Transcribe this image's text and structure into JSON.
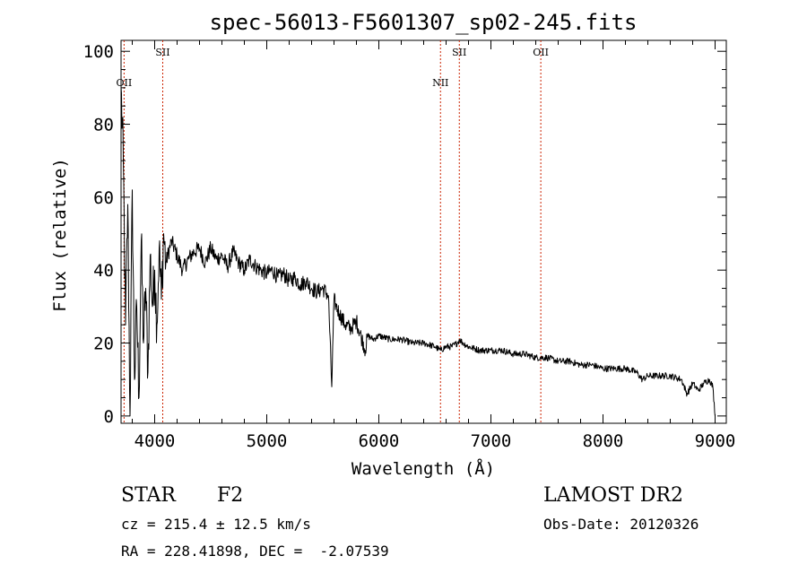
{
  "chart_data": {
    "type": "line",
    "title": "spec-56013-F5601307_sp02-245.fits",
    "xlabel": "Wavelength (Å)",
    "ylabel": "Flux (relative)",
    "xlim": [
      3700,
      9100
    ],
    "ylim": [
      -2,
      103
    ],
    "xticks": [
      4000,
      5000,
      6000,
      7000,
      8000,
      9000
    ],
    "yticks": [
      0,
      20,
      40,
      60,
      80,
      100
    ],
    "grid": false,
    "line_color": "#000000",
    "marker_color": "#cc2200",
    "spectral_lines": [
      {
        "label": "OII",
        "wavelength": 3727,
        "label_row": 2
      },
      {
        "label": "SII",
        "wavelength": 4072,
        "label_row": 1
      },
      {
        "label": "NII",
        "wavelength": 6550,
        "label_row": 2
      },
      {
        "label": "SII",
        "wavelength": 6718,
        "label_row": 1
      },
      {
        "label": "OII",
        "wavelength": 7445,
        "label_row": 1
      }
    ],
    "series": [
      {
        "name": "spectrum",
        "x": [
          3700,
          3720,
          3740,
          3760,
          3780,
          3800,
          3820,
          3840,
          3860,
          3880,
          3900,
          3920,
          3940,
          3960,
          3980,
          4000,
          4020,
          4040,
          4060,
          4080,
          4100,
          4150,
          4200,
          4250,
          4300,
          4350,
          4400,
          4450,
          4500,
          4550,
          4600,
          4650,
          4700,
          4750,
          4800,
          4850,
          4900,
          4950,
          5000,
          5050,
          5100,
          5150,
          5200,
          5250,
          5300,
          5350,
          5400,
          5450,
          5500,
          5550,
          5580,
          5600,
          5620,
          5650,
          5700,
          5750,
          5800,
          5850,
          5880,
          5900,
          5950,
          6000,
          6100,
          6200,
          6300,
          6400,
          6500,
          6550,
          6600,
          6650,
          6700,
          6720,
          6750,
          6800,
          6900,
          7000,
          7100,
          7200,
          7300,
          7400,
          7500,
          7600,
          7700,
          7800,
          7900,
          8000,
          8100,
          8200,
          8300,
          8350,
          8400,
          8500,
          8600,
          8700,
          8750,
          8800,
          8850,
          8900,
          8950,
          8980,
          9000
        ],
        "y": [
          90,
          70,
          25,
          58,
          0,
          62,
          10,
          30,
          5,
          48,
          20,
          35,
          12,
          44,
          30,
          40,
          25,
          46,
          32,
          50,
          42,
          48,
          44,
          40,
          43,
          45,
          46,
          42,
          46,
          43,
          44,
          41,
          45,
          42,
          40,
          43,
          41,
          40,
          39,
          40,
          38,
          39,
          37,
          38,
          36,
          37,
          35,
          34,
          35,
          33,
          8,
          32,
          30,
          28,
          25,
          24,
          26,
          21,
          18,
          22,
          21,
          22,
          21,
          21,
          20,
          20,
          19,
          18,
          19,
          19,
          20,
          21,
          20,
          19,
          18,
          18,
          18,
          17,
          17,
          16,
          16,
          15,
          15,
          14,
          14,
          13,
          13,
          13,
          12,
          10,
          11,
          11,
          11,
          10,
          6,
          9,
          7,
          9,
          10,
          8,
          0
        ]
      }
    ]
  },
  "footer": {
    "object_class": "STAR",
    "subclass": "F2",
    "survey": "LAMOST DR2",
    "redshift_line": "cz = 215.4 ± 12.5 km/s",
    "obs_date": "Obs-Date: 20120326",
    "coords_line": "RA = 228.41898, DEC =  -2.07539"
  }
}
